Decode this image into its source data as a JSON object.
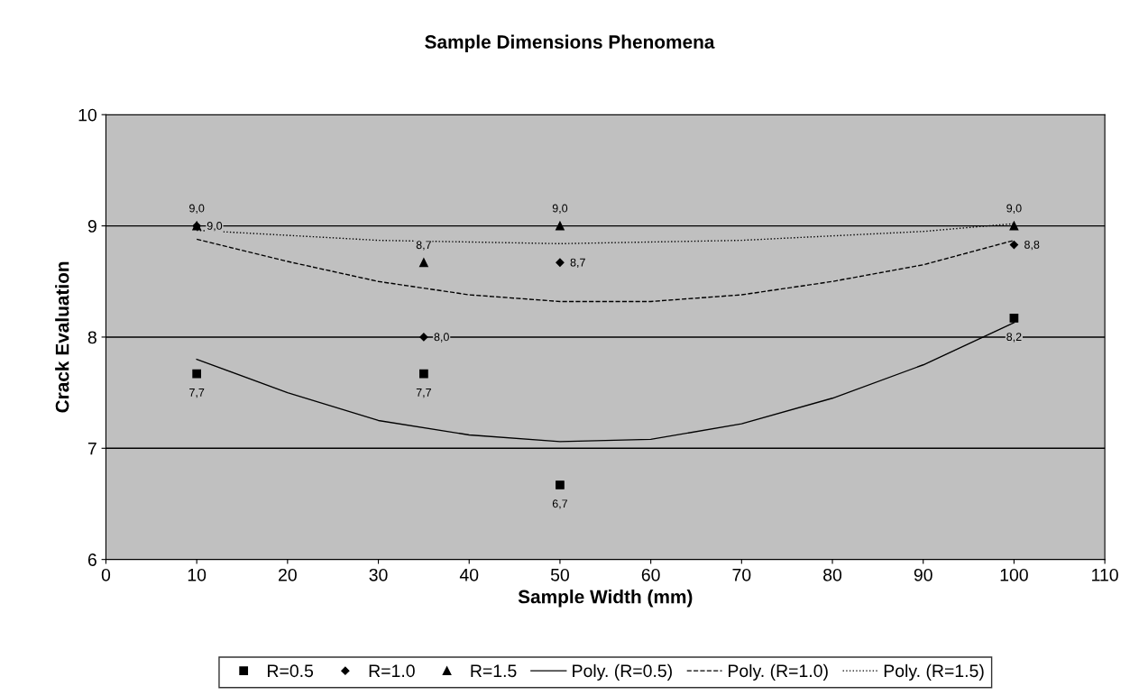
{
  "chart_data": {
    "type": "scatter",
    "title": "Sample Dimensions Phenomena",
    "xlabel": "Sample Width (mm)",
    "ylabel": "Crack Evaluation",
    "xlim": [
      0,
      110
    ],
    "xticks": [
      0,
      10,
      20,
      30,
      40,
      50,
      60,
      70,
      80,
      90,
      100,
      110
    ],
    "ylim": [
      6,
      10
    ],
    "yticks": [
      6,
      7,
      8,
      9,
      10
    ],
    "grid": "y",
    "legend": "bottom",
    "series": [
      {
        "name": "R=0.5",
        "marker": "square",
        "color": "#000000",
        "x": [
          10,
          35,
          50,
          100
        ],
        "values": [
          7.67,
          7.67,
          6.67,
          8.17
        ],
        "value_labels": [
          "7,7",
          "7,7",
          "6,7",
          "8,2"
        ]
      },
      {
        "name": "R=1.0",
        "marker": "diamond",
        "color": "#000000",
        "x": [
          10,
          35,
          50,
          100
        ],
        "values": [
          9.0,
          8.0,
          8.67,
          8.83
        ],
        "value_labels": [
          "9,0",
          "8,0",
          "8,7",
          "8,8"
        ]
      },
      {
        "name": "R=1.5",
        "marker": "triangle",
        "color": "#000000",
        "x": [
          10,
          35,
          50,
          100
        ],
        "values": [
          9.0,
          8.67,
          9.0,
          9.0
        ],
        "value_labels": [
          "9,0",
          "8,7",
          "9,0",
          "9,0"
        ]
      },
      {
        "name": "Poly. (R=0.5)",
        "type": "line",
        "line_style": "solid",
        "color": "#000000",
        "x": [
          10,
          20,
          30,
          40,
          50,
          60,
          70,
          80,
          90,
          100
        ],
        "values": [
          7.8,
          7.5,
          7.25,
          7.12,
          7.06,
          7.08,
          7.22,
          7.45,
          7.75,
          8.13
        ]
      },
      {
        "name": "Poly. (R=1.0)",
        "type": "line",
        "line_style": "dashed",
        "color": "#000000",
        "x": [
          10,
          20,
          30,
          40,
          50,
          60,
          70,
          80,
          90,
          100
        ],
        "values": [
          8.88,
          8.68,
          8.5,
          8.38,
          8.32,
          8.32,
          8.38,
          8.5,
          8.65,
          8.87
        ]
      },
      {
        "name": "Poly. (R=1.5)",
        "type": "line",
        "line_style": "dotted",
        "color": "#000000",
        "x": [
          10,
          30,
          50,
          70,
          90,
          100
        ],
        "values": [
          8.96,
          8.87,
          8.84,
          8.87,
          8.95,
          9.02
        ]
      }
    ]
  }
}
